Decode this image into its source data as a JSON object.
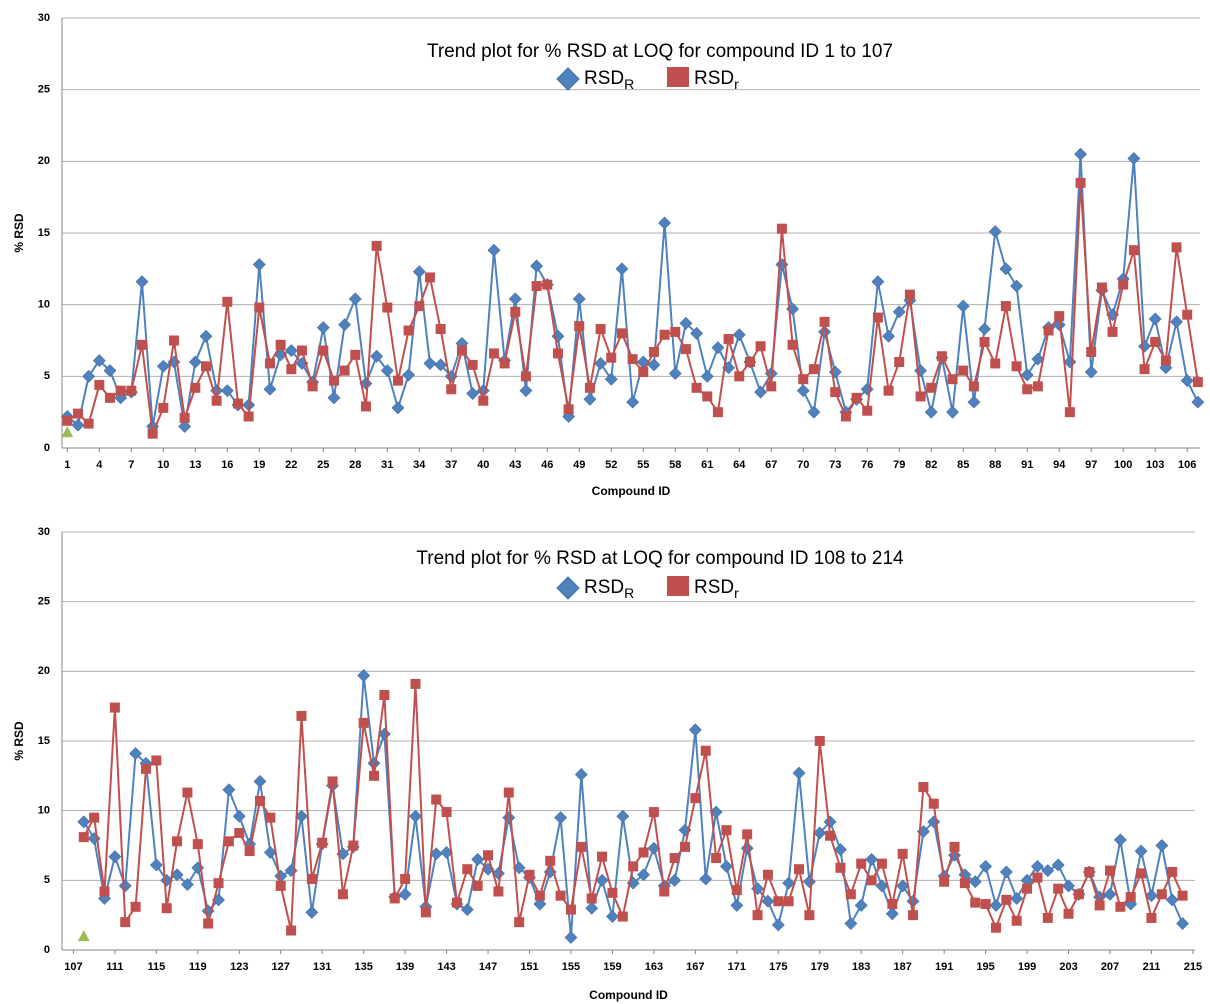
{
  "chart_data": [
    {
      "type": "line",
      "title": "Trend plot for % RSD at LOQ for compound ID 1 to 107",
      "x_label": "Compound ID",
      "y_label": "% RSD",
      "x": [
        1,
        2,
        3,
        4,
        5,
        6,
        7,
        8,
        9,
        10,
        11,
        12,
        13,
        14,
        15,
        16,
        17,
        18,
        19,
        20,
        21,
        22,
        23,
        24,
        25,
        26,
        27,
        28,
        29,
        30,
        31,
        32,
        33,
        34,
        35,
        36,
        37,
        38,
        39,
        40,
        41,
        42,
        43,
        44,
        45,
        46,
        47,
        48,
        49,
        50,
        51,
        52,
        53,
        54,
        55,
        56,
        57,
        58,
        59,
        60,
        61,
        62,
        63,
        64,
        65,
        66,
        67,
        68,
        69,
        70,
        71,
        72,
        73,
        74,
        75,
        76,
        77,
        78,
        79,
        80,
        81,
        82,
        83,
        84,
        85,
        86,
        87,
        88,
        89,
        90,
        91,
        92,
        93,
        94,
        95,
        96,
        97,
        98,
        99,
        100,
        101,
        102,
        103,
        104,
        105,
        106,
        107
      ],
      "series": [
        {
          "name": "RSD",
          "name_sub": "R",
          "color": "#4f81bd",
          "marker": "diamond",
          "values": [
            2.2,
            1.6,
            5.0,
            6.1,
            5.4,
            3.5,
            3.9,
            11.6,
            1.5,
            5.7,
            6.0,
            1.5,
            6.0,
            7.8,
            4.0,
            4.0,
            3.0,
            3.0,
            12.8,
            4.1,
            6.5,
            6.8,
            5.9,
            4.6,
            8.4,
            3.5,
            8.6,
            10.4,
            4.5,
            6.4,
            5.4,
            2.8,
            5.1,
            12.3,
            5.9,
            5.8,
            5.0,
            7.3,
            3.8,
            4.0,
            13.8,
            6.1,
            10.4,
            4.0,
            12.7,
            11.4,
            7.8,
            2.2,
            10.4,
            3.4,
            5.9,
            4.8,
            12.5,
            3.2,
            6.0,
            5.8,
            15.7,
            5.2,
            8.7,
            8.0,
            5.0,
            7.0,
            5.6,
            7.9,
            6.0,
            3.9,
            5.2,
            12.8,
            9.7,
            4.0,
            2.5,
            8.1,
            5.3,
            2.5,
            3.4,
            4.1,
            11.6,
            7.8,
            9.5,
            10.3,
            5.4,
            2.5,
            6.3,
            2.5,
            9.9,
            3.2,
            8.3,
            15.1,
            12.5,
            11.3,
            5.1,
            6.2,
            8.4,
            8.6,
            6.0,
            20.5,
            5.3,
            11.0,
            9.3,
            11.8,
            20.2,
            7.1,
            9.0,
            5.6,
            8.8,
            4.7,
            3.2
          ]
        },
        {
          "name": "RSD",
          "name_sub": "r",
          "color": "#c0504d",
          "marker": "square",
          "values": [
            1.9,
            2.4,
            1.7,
            4.4,
            3.5,
            4.0,
            4.0,
            7.2,
            1.0,
            2.8,
            7.5,
            2.1,
            4.2,
            5.7,
            3.3,
            10.2,
            3.1,
            2.2,
            9.8,
            5.9,
            7.2,
            5.5,
            6.8,
            4.3,
            6.8,
            4.7,
            5.4,
            6.5,
            2.9,
            14.1,
            9.8,
            4.7,
            8.2,
            9.9,
            11.9,
            8.3,
            4.1,
            6.8,
            5.8,
            3.3,
            6.6,
            5.9,
            9.5,
            5.0,
            11.3,
            11.4,
            6.6,
            2.7,
            8.5,
            4.2,
            8.3,
            6.3,
            8.0,
            6.2,
            5.3,
            6.7,
            7.9,
            8.1,
            6.9,
            4.2,
            3.6,
            2.5,
            7.6,
            5.0,
            6.0,
            7.1,
            4.3,
            15.3,
            7.2,
            4.8,
            5.5,
            8.8,
            3.9,
            2.2,
            3.5,
            2.6,
            9.1,
            4.0,
            6.0,
            10.7,
            3.6,
            4.2,
            6.4,
            4.8,
            5.4,
            4.3,
            7.4,
            5.9,
            9.9,
            5.7,
            4.1,
            4.3,
            8.2,
            9.2,
            2.5,
            18.5,
            6.7,
            11.2,
            8.1,
            11.4,
            13.8,
            5.5,
            7.4,
            6.1,
            14.0,
            9.3,
            4.6
          ]
        },
        {
          "color": "#9bbb59",
          "marker": "triangle",
          "x": [
            1
          ],
          "values": [
            1.1
          ]
        }
      ],
      "xlim": [
        0.5,
        107.2
      ],
      "xticks": [
        1,
        4,
        7,
        10,
        13,
        16,
        19,
        22,
        25,
        28,
        31,
        34,
        37,
        40,
        43,
        46,
        49,
        52,
        55,
        58,
        61,
        64,
        67,
        70,
        73,
        76,
        79,
        82,
        85,
        88,
        91,
        94,
        97,
        100,
        103,
        106
      ],
      "ylim": [
        0,
        30
      ],
      "yticks": [
        0,
        5,
        10,
        15,
        20,
        25,
        30
      ],
      "grid": true
    },
    {
      "type": "line",
      "title": "Trend plot for % RSD at LOQ for compound ID 108 to 214",
      "x_label": "Compound ID",
      "y_label": "% RSD",
      "x": [
        108,
        109,
        110,
        111,
        112,
        113,
        114,
        115,
        116,
        117,
        118,
        119,
        120,
        121,
        122,
        123,
        124,
        125,
        126,
        127,
        128,
        129,
        130,
        131,
        132,
        133,
        134,
        135,
        136,
        137,
        138,
        139,
        140,
        141,
        142,
        143,
        144,
        145,
        146,
        147,
        148,
        149,
        150,
        151,
        152,
        153,
        154,
        155,
        156,
        157,
        158,
        159,
        160,
        161,
        162,
        163,
        164,
        165,
        166,
        167,
        168,
        169,
        170,
        171,
        172,
        173,
        174,
        175,
        176,
        177,
        178,
        179,
        180,
        181,
        182,
        183,
        184,
        185,
        186,
        187,
        188,
        189,
        190,
        191,
        192,
        193,
        194,
        195,
        196,
        197,
        198,
        199,
        200,
        201,
        202,
        203,
        204,
        205,
        206,
        207,
        208,
        209,
        210,
        211,
        212,
        213,
        214
      ],
      "series": [
        {
          "name": "RSD",
          "name_sub": "R",
          "color": "#4f81bd",
          "marker": "diamond",
          "values": [
            9.2,
            8.0,
            3.7,
            6.7,
            4.6,
            14.1,
            13.4,
            6.1,
            5.0,
            5.4,
            4.7,
            5.9,
            2.8,
            3.6,
            11.5,
            9.6,
            7.6,
            12.1,
            7.0,
            5.3,
            5.7,
            9.6,
            2.7,
            7.6,
            11.8,
            6.9,
            7.4,
            19.7,
            13.4,
            15.5,
            3.8,
            4.0,
            9.6,
            3.1,
            6.9,
            7.0,
            3.3,
            2.9,
            6.5,
            5.8,
            5.5,
            9.5,
            5.9,
            5.2,
            3.3,
            5.6,
            9.5,
            0.9,
            12.6,
            3.0,
            5.0,
            2.4,
            9.6,
            4.8,
            5.4,
            7.3,
            4.6,
            5.0,
            8.6,
            15.8,
            5.1,
            9.9,
            6.0,
            3.2,
            7.3,
            4.4,
            3.5,
            1.8,
            4.8,
            12.7,
            4.9,
            8.4,
            9.2,
            7.2,
            1.9,
            3.2,
            6.5,
            4.6,
            2.6,
            4.6,
            3.5,
            8.5,
            9.2,
            5.3,
            6.8,
            5.4,
            4.9,
            6.0,
            3.2,
            5.6,
            3.7,
            5.0,
            6.0,
            5.7,
            6.1,
            4.6,
            4.0,
            5.6,
            3.8,
            4.0,
            7.9,
            3.3,
            7.1,
            3.9,
            7.5,
            3.6,
            1.9
          ]
        },
        {
          "name": "RSD",
          "name_sub": "r",
          "color": "#c0504d",
          "marker": "square",
          "values": [
            8.1,
            9.5,
            4.2,
            17.4,
            2.0,
            3.1,
            13.0,
            13.6,
            3.0,
            7.8,
            11.3,
            7.6,
            1.9,
            4.8,
            7.8,
            8.4,
            7.1,
            10.7,
            9.5,
            4.6,
            1.4,
            16.8,
            5.1,
            7.7,
            12.1,
            4.0,
            7.5,
            16.3,
            12.5,
            18.3,
            3.7,
            5.1,
            19.1,
            2.7,
            10.8,
            9.9,
            3.4,
            5.8,
            4.6,
            6.8,
            4.2,
            11.3,
            2.0,
            5.4,
            3.9,
            6.4,
            3.9,
            2.9,
            7.4,
            3.7,
            6.7,
            4.1,
            2.4,
            6.0,
            7.0,
            9.9,
            4.2,
            6.6,
            7.4,
            10.9,
            14.3,
            6.6,
            8.6,
            4.3,
            8.3,
            2.5,
            5.4,
            3.5,
            3.5,
            5.8,
            2.5,
            15.0,
            8.2,
            5.9,
            4.0,
            6.2,
            5.0,
            6.2,
            3.3,
            6.9,
            2.5,
            11.7,
            10.5,
            4.9,
            7.4,
            4.8,
            3.4,
            3.3,
            1.6,
            3.6,
            2.1,
            4.4,
            5.2,
            2.3,
            4.4,
            2.6,
            4.0,
            5.6,
            3.2,
            5.7,
            3.1,
            3.8,
            5.5,
            2.3,
            4.0,
            5.6,
            3.9
          ]
        },
        {
          "color": "#9bbb59",
          "marker": "triangle",
          "x": [
            108
          ],
          "values": [
            1.0
          ]
        }
      ],
      "xlim": [
        105.9,
        215.2
      ],
      "xticks": [
        107,
        111,
        115,
        119,
        123,
        127,
        131,
        135,
        139,
        143,
        147,
        151,
        155,
        159,
        163,
        167,
        171,
        175,
        179,
        183,
        187,
        191,
        195,
        199,
        203,
        207,
        211,
        215
      ],
      "ylim": [
        0,
        30
      ],
      "yticks": [
        0,
        5,
        10,
        15,
        20,
        25,
        30
      ],
      "grid": true
    }
  ]
}
